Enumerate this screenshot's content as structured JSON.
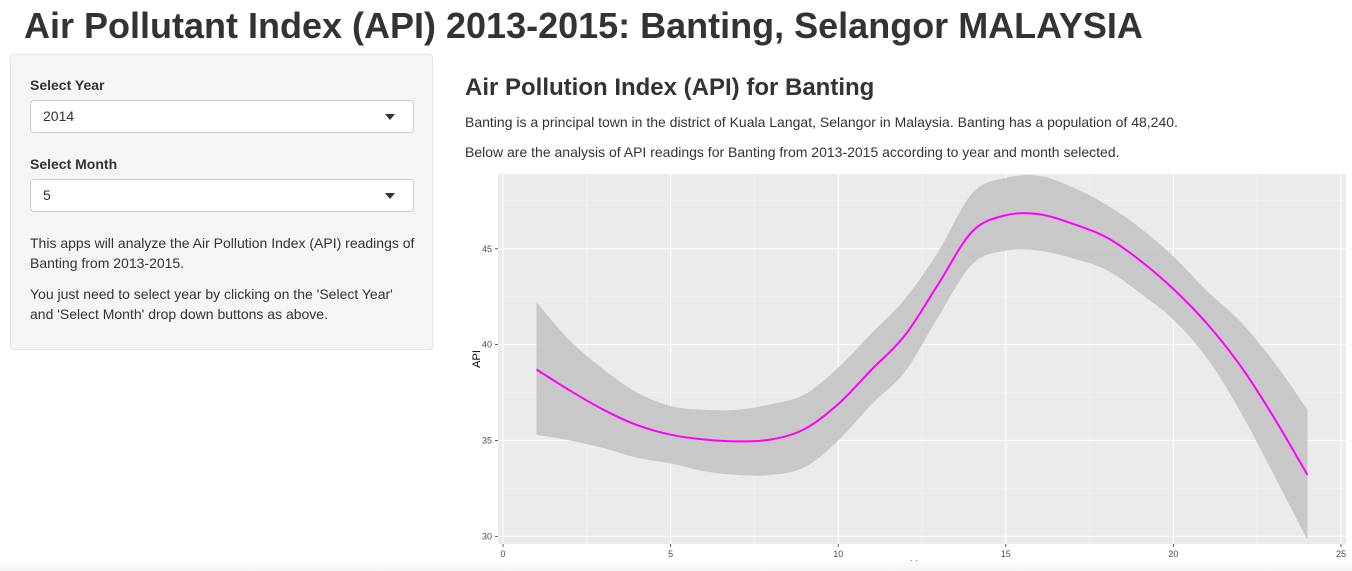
{
  "page": {
    "title": "Air Pollutant Index (API) 2013-2015: Banting, Selangor MALAYSIA"
  },
  "sidebar": {
    "year_label": "Select Year",
    "year_value": "2014",
    "month_label": "Select Month",
    "month_value": "5",
    "paragraph_1": "This apps will analyze the Air Pollution Index (API) readings of Banting from 2013-2015.",
    "paragraph_2": "You just need to select year by clicking on the 'Select Year' and 'Select Month' drop down buttons as above."
  },
  "main": {
    "heading": "Air Pollution Index (API) for Banting",
    "intro": "Banting is a principal town in the district of Kuala Langat, Selangor in Malaysia. Banting has a population of 48,240.",
    "description": "Below are the analysis of API readings for Banting from 2013-2015 according to year and month selected."
  },
  "chart_data": {
    "type": "line",
    "xlabel": "Hour",
    "ylabel": "API",
    "xlim": [
      -0.15,
      25.15
    ],
    "ylim": [
      29.6,
      48.9
    ],
    "xticks": [
      0,
      5,
      10,
      15,
      20,
      25
    ],
    "yticks": [
      30,
      35,
      40,
      45
    ],
    "grid": true,
    "colors": {
      "line": "#ff00ff",
      "band": "#c4c4c4",
      "panel": "#ebebeb",
      "grid": "#ffffff"
    },
    "series": [
      {
        "x": [
          1,
          2,
          3,
          4,
          5,
          6,
          7,
          8,
          9,
          10,
          11,
          12,
          13,
          14,
          15,
          16,
          17,
          18,
          19,
          20,
          21,
          22,
          23,
          24
        ],
        "y": [
          38.7,
          37.6,
          36.6,
          35.8,
          35.3,
          35.05,
          34.95,
          35.05,
          35.6,
          36.9,
          38.7,
          40.5,
          43.2,
          45.9,
          46.75,
          46.8,
          46.3,
          45.6,
          44.4,
          42.9,
          41.1,
          38.9,
          36.2,
          33.2
        ],
        "lower": [
          35.3,
          35.0,
          34.6,
          34.1,
          33.8,
          33.4,
          33.2,
          33.2,
          33.6,
          35.0,
          36.9,
          38.6,
          41.5,
          44.2,
          44.9,
          44.9,
          44.5,
          43.9,
          42.7,
          41.3,
          39.3,
          36.5,
          33.2,
          29.8
        ],
        "upper": [
          42.2,
          40.2,
          38.7,
          37.5,
          36.8,
          36.6,
          36.6,
          36.9,
          37.4,
          38.8,
          40.6,
          42.4,
          44.9,
          47.9,
          48.7,
          48.8,
          48.2,
          47.3,
          46.1,
          44.6,
          42.8,
          41.2,
          39.1,
          36.6
        ]
      }
    ]
  }
}
